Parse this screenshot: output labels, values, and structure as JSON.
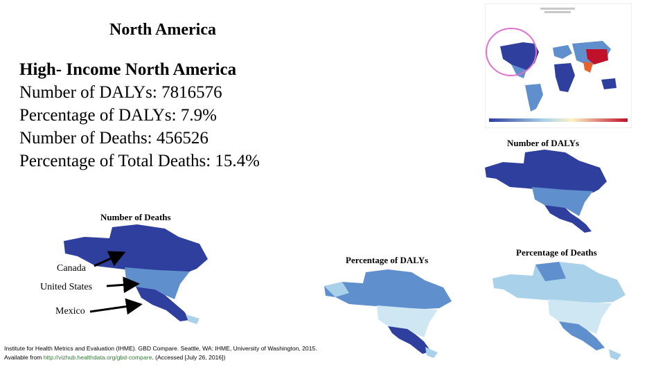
{
  "slide": {
    "title": "North America",
    "stats": {
      "heading": "High- Income North America",
      "lines": [
        "Number of DALYs: 7816576",
        "Percentage of DALYs: 7.9%",
        "Number of Deaths: 456526",
        "Percentage of Total Deaths: 15.4%"
      ]
    },
    "map_captions": {
      "dalys": "Number of DALYs",
      "deaths": "Number of Deaths",
      "pct_dalys": "Percentage of DALYs",
      "pct_deaths": "Percentage of Deaths"
    },
    "country_labels": {
      "canada": "Canada",
      "united_states": "United States",
      "mexico": "Mexico"
    },
    "citation": {
      "text": "Institute for Health Metrics and Evaluation (IHME). GBD Compare. Seattle, WA: IHME, University of Washington, 2015. Available from ",
      "link": "http://vizhub.healthdata.org/gbd-compare",
      "suffix": ". (Accessed [July 26, 2016])"
    },
    "colors": {
      "dark_blue": "#2f3f9e",
      "mid_blue": "#5f8fcc",
      "light_blue": "#a9d2ea",
      "very_light_blue": "#cfe6f3",
      "red": "#c0102a",
      "highlight_circle": "#e070d0"
    }
  }
}
